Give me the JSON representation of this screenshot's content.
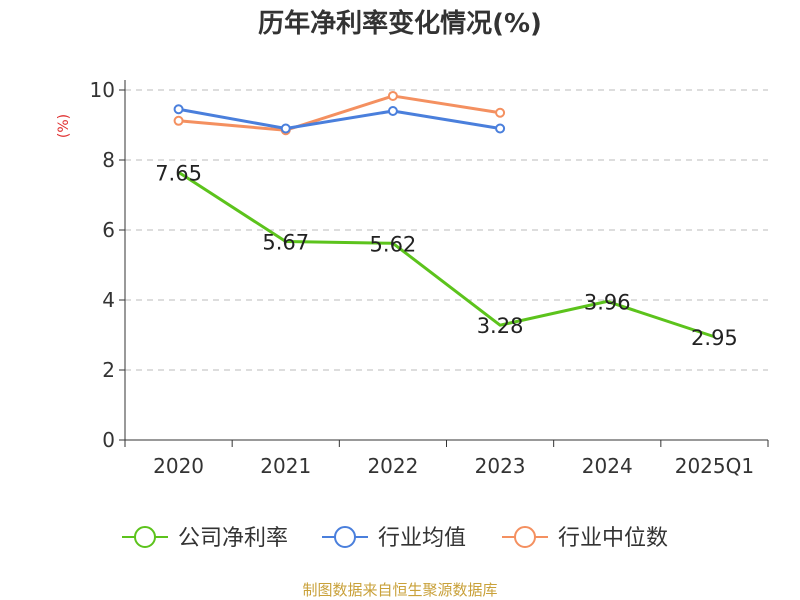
{
  "chart_data": {
    "type": "line",
    "title": "历年净利率变化情况(%)",
    "ylabel": "(%)",
    "categories": [
      "2020",
      "2021",
      "2022",
      "2023",
      "2024",
      "2025Q1"
    ],
    "ylim": [
      0,
      10
    ],
    "yticks": [
      0,
      2,
      4,
      6,
      8,
      10
    ],
    "grid": true,
    "legend_position": "bottom",
    "series": [
      {
        "name": "公司净利率",
        "values": [
          7.65,
          5.67,
          5.62,
          3.28,
          3.96,
          2.95
        ],
        "color": "#5cc31c",
        "labels": [
          "7.65",
          "5.67",
          "5.62",
          "3.28",
          "3.96",
          "2.95"
        ]
      },
      {
        "name": "行业均值",
        "values": [
          9.45,
          8.9,
          9.4,
          8.9,
          null,
          null
        ],
        "color": "#4a7fdc"
      },
      {
        "name": "行业中位数",
        "values": [
          9.12,
          8.85,
          9.83,
          9.35,
          null,
          null
        ],
        "color": "#f49060"
      }
    ]
  },
  "source": {
    "text": "制图数据来自恒生聚源数据库",
    "color": "#c9a13a"
  },
  "ylabel_color": "#e03030"
}
